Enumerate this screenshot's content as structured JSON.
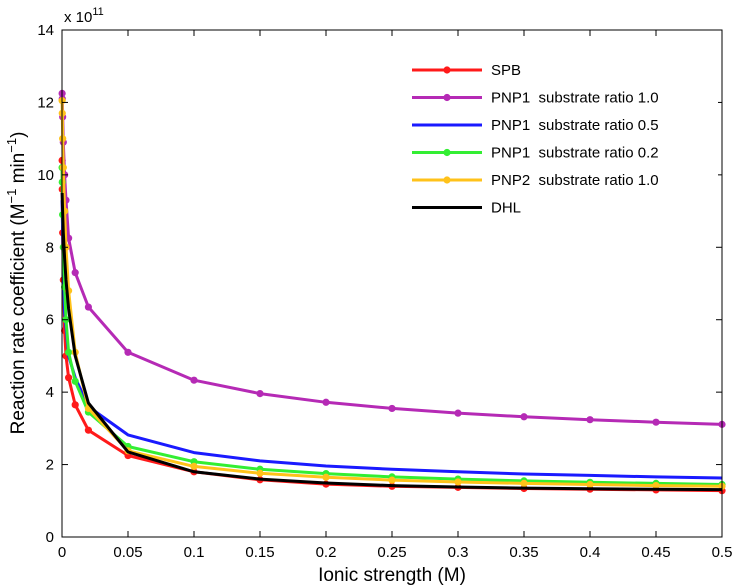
{
  "chart_data": {
    "type": "line",
    "title": "",
    "xlabel": "Ionic strength (M)",
    "ylabel": "Reaction rate coefficient (M",
    "ylabel_sup1": "−1",
    "ylabel_mid": " min",
    "ylabel_sup2": "−1",
    "ylabel_end": ")",
    "y_multiplier": "x 10",
    "y_multiplier_exp": "11",
    "xlim": [
      0,
      0.5
    ],
    "ylim": [
      0,
      14
    ],
    "x_ticks": [
      0,
      0.05,
      0.1,
      0.15,
      0.2,
      0.25,
      0.3,
      0.35,
      0.4,
      0.45,
      0.5
    ],
    "x_tick_labels": [
      "0",
      "0.05",
      "0.1",
      "0.15",
      "0.2",
      "0.25",
      "0.3",
      "0.35",
      "0.4",
      "0.45",
      "0.5"
    ],
    "y_ticks": [
      0,
      2,
      4,
      6,
      8,
      10,
      12,
      14
    ],
    "y_tick_labels": [
      "0",
      "2",
      "4",
      "6",
      "8",
      "10",
      "12",
      "14"
    ],
    "grid": false,
    "legend_position": "top-right",
    "series": [
      {
        "name": "SPB",
        "color": "#ff1a1a",
        "markers": true,
        "x": [
          0.0001,
          0.0002,
          0.0005,
          0.001,
          0.002,
          0.003,
          0.005,
          0.01,
          0.02,
          0.05,
          0.1,
          0.15,
          0.2,
          0.25,
          0.3,
          0.35,
          0.4,
          0.45,
          0.5
        ],
        "y": [
          10.4,
          9.6,
          8.4,
          7.1,
          5.7,
          5.0,
          4.4,
          3.65,
          2.95,
          2.25,
          1.8,
          1.58,
          1.46,
          1.4,
          1.37,
          1.34,
          1.32,
          1.3,
          1.28
        ]
      },
      {
        "name": "PNP1  substrate ratio 1.0",
        "color": "#b52ab5",
        "markers": true,
        "x": [
          0.0001,
          0.0002,
          0.0005,
          0.001,
          0.002,
          0.003,
          0.005,
          0.01,
          0.02,
          0.05,
          0.1,
          0.15,
          0.2,
          0.25,
          0.3,
          0.35,
          0.4,
          0.45,
          0.5
        ],
        "y": [
          12.25,
          12.1,
          11.6,
          10.9,
          10.0,
          9.3,
          8.25,
          7.3,
          6.35,
          5.1,
          4.33,
          3.96,
          3.72,
          3.55,
          3.42,
          3.32,
          3.24,
          3.17,
          3.11
        ]
      },
      {
        "name": "PNP1  substrate ratio 0.5",
        "color": "#1a1aff",
        "markers": false,
        "x": [
          0.0001,
          0.0005,
          0.001,
          0.002,
          0.005,
          0.01,
          0.02,
          0.05,
          0.1,
          0.15,
          0.2,
          0.25,
          0.3,
          0.35,
          0.4,
          0.45,
          0.5
        ],
        "y": [
          9.3,
          8.3,
          7.4,
          6.2,
          5.0,
          4.4,
          3.6,
          2.82,
          2.33,
          2.1,
          1.96,
          1.87,
          1.8,
          1.74,
          1.7,
          1.66,
          1.63
        ]
      },
      {
        "name": "PNP1  substrate ratio 0.2",
        "color": "#33ee33",
        "markers": true,
        "x": [
          0.0001,
          0.0002,
          0.0005,
          0.001,
          0.002,
          0.003,
          0.005,
          0.01,
          0.02,
          0.05,
          0.1,
          0.15,
          0.2,
          0.25,
          0.3,
          0.35,
          0.4,
          0.45,
          0.5
        ],
        "y": [
          10.2,
          9.8,
          8.9,
          8.0,
          6.9,
          6.0,
          5.1,
          4.3,
          3.45,
          2.5,
          2.08,
          1.87,
          1.75,
          1.66,
          1.6,
          1.55,
          1.51,
          1.48,
          1.45
        ]
      },
      {
        "name": "PNP2  substrate ratio 1.0",
        "color": "#ffc21a",
        "markers": true,
        "x": [
          0.0001,
          0.0002,
          0.0005,
          0.001,
          0.002,
          0.003,
          0.005,
          0.01,
          0.02,
          0.05,
          0.1,
          0.15,
          0.2,
          0.25,
          0.3,
          0.35,
          0.4,
          0.45,
          0.5
        ],
        "y": [
          12.05,
          11.7,
          11.0,
          10.2,
          9.0,
          8.0,
          6.8,
          5.1,
          3.55,
          2.38,
          1.95,
          1.76,
          1.65,
          1.57,
          1.52,
          1.48,
          1.45,
          1.42,
          1.4
        ]
      },
      {
        "name": "DHL",
        "color": "#000000",
        "markers": false,
        "x": [
          0.0001,
          0.0002,
          0.0005,
          0.001,
          0.002,
          0.003,
          0.005,
          0.01,
          0.02,
          0.05,
          0.1,
          0.15,
          0.2,
          0.25,
          0.3,
          0.35,
          0.4,
          0.45,
          0.5
        ],
        "y": [
          9.5,
          9.3,
          8.9,
          8.4,
          7.7,
          7.1,
          6.3,
          5.0,
          3.7,
          2.35,
          1.8,
          1.6,
          1.49,
          1.42,
          1.38,
          1.35,
          1.33,
          1.32,
          1.31
        ]
      }
    ]
  }
}
